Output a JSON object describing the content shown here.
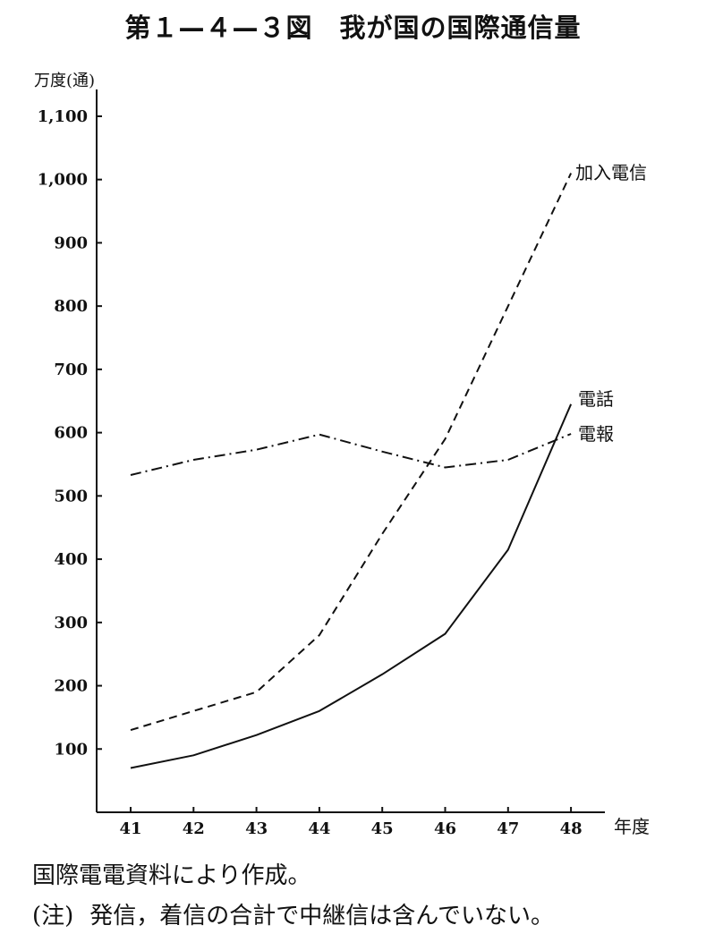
{
  "chart_data": {
    "type": "line",
    "title": "第１—４—３図　我が国の国際通信量",
    "ylabel": "万度(通)",
    "xlabel": "年度",
    "x": [
      "41",
      "42",
      "43",
      "44",
      "45",
      "46",
      "47",
      "48"
    ],
    "ylim": [
      0,
      1100
    ],
    "yticks": [
      100,
      200,
      300,
      400,
      500,
      600,
      700,
      800,
      900,
      1000,
      1100
    ],
    "ytick_labels": [
      "100",
      "200",
      "300",
      "400",
      "500",
      "600",
      "700",
      "800",
      "900",
      "1,000",
      "1,100"
    ],
    "grid": false,
    "series": [
      {
        "name": "加入電信",
        "style": "dashed",
        "values": [
          130,
          160,
          190,
          280,
          440,
          590,
          800,
          1010
        ]
      },
      {
        "name": "電話",
        "style": "solid",
        "values": [
          70,
          90,
          122,
          160,
          218,
          282,
          415,
          645
        ]
      },
      {
        "name": "電報",
        "style": "dashdot",
        "values": [
          533,
          557,
          573,
          597,
          570,
          545,
          557,
          598
        ]
      }
    ]
  },
  "footer": {
    "source": "国際電電資料により作成。",
    "note_prefix": "(注)",
    "note": "発信，着信の合計で中継信は含んでいない。"
  }
}
